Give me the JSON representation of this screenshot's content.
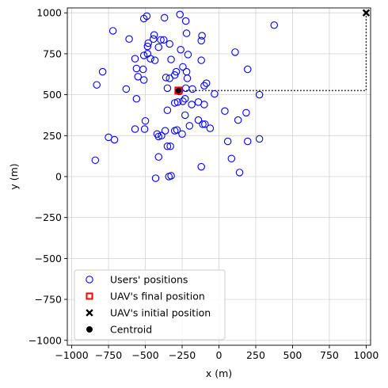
{
  "chart_data": {
    "type": "scatter",
    "xlabel": "x (m)",
    "ylabel": "y (m)",
    "xlim": [
      -1030,
      1030
    ],
    "ylim": [
      -1030,
      1030
    ],
    "xticks": [
      -1000,
      -750,
      -500,
      -250,
      0,
      250,
      500,
      750,
      1000
    ],
    "yticks": [
      -1000,
      -750,
      -500,
      -250,
      0,
      250,
      500,
      750,
      1000
    ],
    "xtick_labels": [
      "−1000",
      "−750",
      "−500",
      "−250",
      "0",
      "250",
      "500",
      "750",
      "1000"
    ],
    "ytick_labels": [
      "−1000",
      "−750",
      "−500",
      "−250",
      "0",
      "250",
      "500",
      "750",
      "1000"
    ],
    "grid": true,
    "legend_position": "lower-left",
    "colors": {
      "users": "#0000ff",
      "uav_final": "#ff0000",
      "uav_initial": "#000000",
      "centroid": "#000000",
      "path": "#000000",
      "grid": "#d3d3d3"
    },
    "users": {
      "name": "Users' positions",
      "points": [
        [
          -490,
          980
        ],
        [
          -510,
          965
        ],
        [
          -370,
          970
        ],
        [
          -265,
          990
        ],
        [
          -225,
          950
        ],
        [
          -720,
          890
        ],
        [
          -220,
          875
        ],
        [
          -115,
          860
        ],
        [
          -440,
          865
        ],
        [
          -395,
          835
        ],
        [
          -335,
          810
        ],
        [
          -480,
          815
        ],
        [
          -485,
          795
        ],
        [
          -610,
          840
        ],
        [
          -445,
          840
        ],
        [
          -120,
          830
        ],
        [
          -375,
          835
        ],
        [
          -410,
          790
        ],
        [
          -485,
          750
        ],
        [
          -260,
          775
        ],
        [
          -210,
          745
        ],
        [
          -570,
          720
        ],
        [
          -510,
          740
        ],
        [
          -325,
          715
        ],
        [
          -465,
          720
        ],
        [
          -435,
          710
        ],
        [
          -120,
          710
        ],
        [
          -245,
          670
        ],
        [
          -560,
          660
        ],
        [
          -515,
          655
        ],
        [
          -550,
          610
        ],
        [
          -790,
          640
        ],
        [
          -830,
          560
        ],
        [
          -510,
          590
        ],
        [
          -360,
          605
        ],
        [
          -335,
          600
        ],
        [
          -300,
          620
        ],
        [
          -290,
          640
        ],
        [
          -220,
          640
        ],
        [
          -215,
          600
        ],
        [
          -100,
          555
        ],
        [
          -85,
          570
        ],
        [
          -630,
          535
        ],
        [
          -350,
          540
        ],
        [
          -225,
          540
        ],
        [
          -180,
          535
        ],
        [
          -30,
          505
        ],
        [
          -560,
          475
        ],
        [
          -270,
          520
        ],
        [
          -230,
          475
        ],
        [
          -280,
          455
        ],
        [
          -245,
          460
        ],
        [
          -300,
          450
        ],
        [
          -185,
          440
        ],
        [
          -140,
          455
        ],
        [
          -100,
          440
        ],
        [
          -350,
          405
        ],
        [
          -230,
          375
        ],
        [
          -140,
          345
        ],
        [
          -95,
          320
        ],
        [
          -110,
          320
        ],
        [
          -200,
          310
        ],
        [
          -60,
          295
        ],
        [
          -390,
          250
        ],
        [
          -500,
          340
        ],
        [
          -570,
          290
        ],
        [
          -505,
          290
        ],
        [
          -365,
          280
        ],
        [
          -300,
          280
        ],
        [
          -285,
          285
        ],
        [
          -250,
          260
        ],
        [
          -420,
          260
        ],
        [
          -410,
          245
        ],
        [
          -410,
          120
        ],
        [
          -350,
          185
        ],
        [
          -330,
          185
        ],
        [
          -750,
          240
        ],
        [
          -710,
          225
        ],
        [
          -840,
          100
        ],
        [
          -430,
          -10
        ],
        [
          -340,
          0
        ],
        [
          -325,
          5
        ],
        [
          -120,
          60
        ],
        [
          40,
          400
        ],
        [
          130,
          345
        ],
        [
          185,
          390
        ],
        [
          195,
          655
        ],
        [
          110,
          760
        ],
        [
          375,
          925
        ],
        [
          275,
          500
        ],
        [
          60,
          215
        ],
        [
          195,
          215
        ],
        [
          275,
          230
        ],
        [
          85,
          110
        ],
        [
          140,
          25
        ]
      ]
    },
    "uav_final": {
      "name": "UAV's final position",
      "x": -275,
      "y": 525
    },
    "uav_initial": {
      "name": "UAV's initial position",
      "x": 1000,
      "y": 1000
    },
    "centroid": {
      "name": "Centroid",
      "x": -275,
      "y": 525
    }
  },
  "legend": {
    "users": "Users' positions",
    "uav_final": "UAV's final position",
    "uav_initial": "UAV's initial position",
    "centroid": "Centroid"
  }
}
